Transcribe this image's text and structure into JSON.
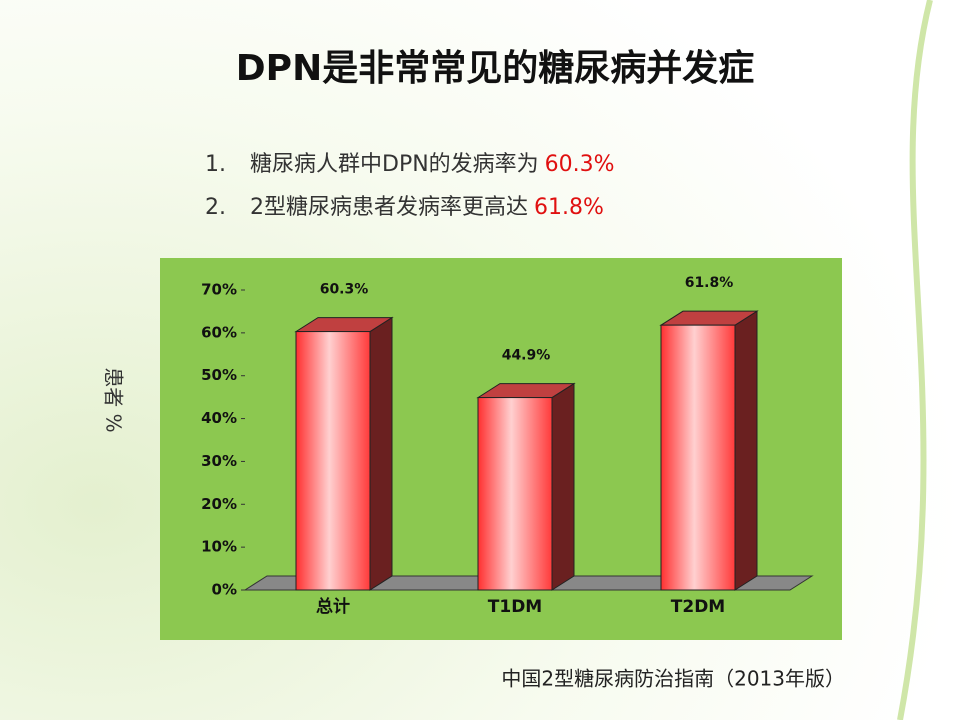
{
  "title": "DPN是非常常见的糖尿病并发症",
  "bullets": [
    {
      "number": "1.",
      "text": "糖尿病人群中DPN的发病率为",
      "highlight": "60.3%"
    },
    {
      "number": "2.",
      "text": "2型糖尿病患者发病率更高达",
      "highlight": "61.8%"
    }
  ],
  "source": "中国2型糖尿病防治指南（2013年版）",
  "chart_data": {
    "type": "bar",
    "y_label": "患者 %",
    "categories": [
      "总计",
      "T1DM",
      "T2DM"
    ],
    "values": [
      60.3,
      44.9,
      61.8
    ],
    "value_labels": [
      "60.3%",
      "44.9%",
      "61.8%"
    ],
    "color": "#ff4040",
    "ylim": [
      0,
      70
    ],
    "yticks": [
      {
        "value": 0,
        "label": "0%"
      },
      {
        "value": 10,
        "label": "10%"
      },
      {
        "value": 20,
        "label": "20%"
      },
      {
        "value": 30,
        "label": "30%"
      },
      {
        "value": 40,
        "label": "40%"
      },
      {
        "value": 50,
        "label": "50%"
      },
      {
        "value": 60,
        "label": "60%"
      },
      {
        "value": 70,
        "label": "70%"
      }
    ],
    "background": "#8cc850"
  }
}
